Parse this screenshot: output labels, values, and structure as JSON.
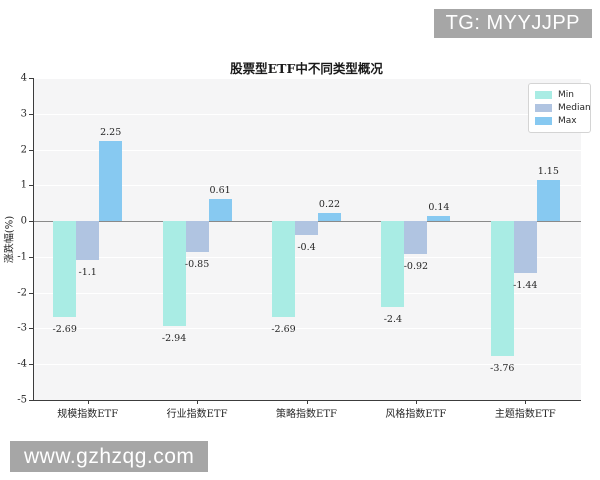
{
  "watermarks": {
    "top_right": "TG: MYYJJPP",
    "bottom_left": "www.gzhzqg.com"
  },
  "chart_data": {
    "type": "bar",
    "title": "股票型ETF中不同类型概况",
    "xlabel": "",
    "ylabel": "涨跌幅(%)",
    "categories": [
      "规模指数ETF",
      "行业指数ETF",
      "策略指数ETF",
      "风格指数ETF",
      "主题指数ETF"
    ],
    "series": [
      {
        "name": "Min",
        "color": "#a9ece4",
        "values": [
          -2.69,
          -2.94,
          -2.69,
          -2.4,
          -3.76
        ]
      },
      {
        "name": "Median",
        "color": "#b0c4e1",
        "values": [
          -1.1,
          -0.85,
          -0.4,
          -0.92,
          -1.44
        ]
      },
      {
        "name": "Max",
        "color": "#87c9f1",
        "values": [
          2.25,
          0.61,
          0.22,
          0.14,
          1.15
        ]
      }
    ],
    "ylim": [
      -5,
      4
    ],
    "yticks": [
      4,
      3,
      2,
      1,
      0,
      -1,
      -2,
      -3,
      -4,
      -5
    ],
    "grid": true,
    "legend_position": "upper right",
    "data_labels": true
  }
}
